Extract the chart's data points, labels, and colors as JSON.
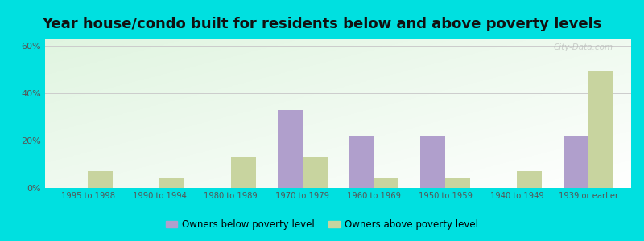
{
  "title": "Year house/condo built for residents below and above poverty levels",
  "categories": [
    "1995 to 1998",
    "1990 to 1994",
    "1980 to 1989",
    "1970 to 1979",
    "1960 to 1969",
    "1950 to 1959",
    "1940 to 1949",
    "1939 or earlier"
  ],
  "below_poverty": [
    0,
    0,
    0,
    33,
    22,
    22,
    0,
    22
  ],
  "above_poverty": [
    7,
    4,
    13,
    13,
    4,
    4,
    7,
    49
  ],
  "below_color": "#b09fcc",
  "above_color": "#c8d49f",
  "outer_bg": "#00e0e0",
  "ylabel_ticks": [
    "0%",
    "20%",
    "40%",
    "60%"
  ],
  "yticks": [
    0,
    20,
    40,
    60
  ],
  "ylim": [
    0,
    63
  ],
  "legend_below": "Owners below poverty level",
  "legend_above": "Owners above poverty level",
  "title_fontsize": 13,
  "bar_width": 0.35
}
